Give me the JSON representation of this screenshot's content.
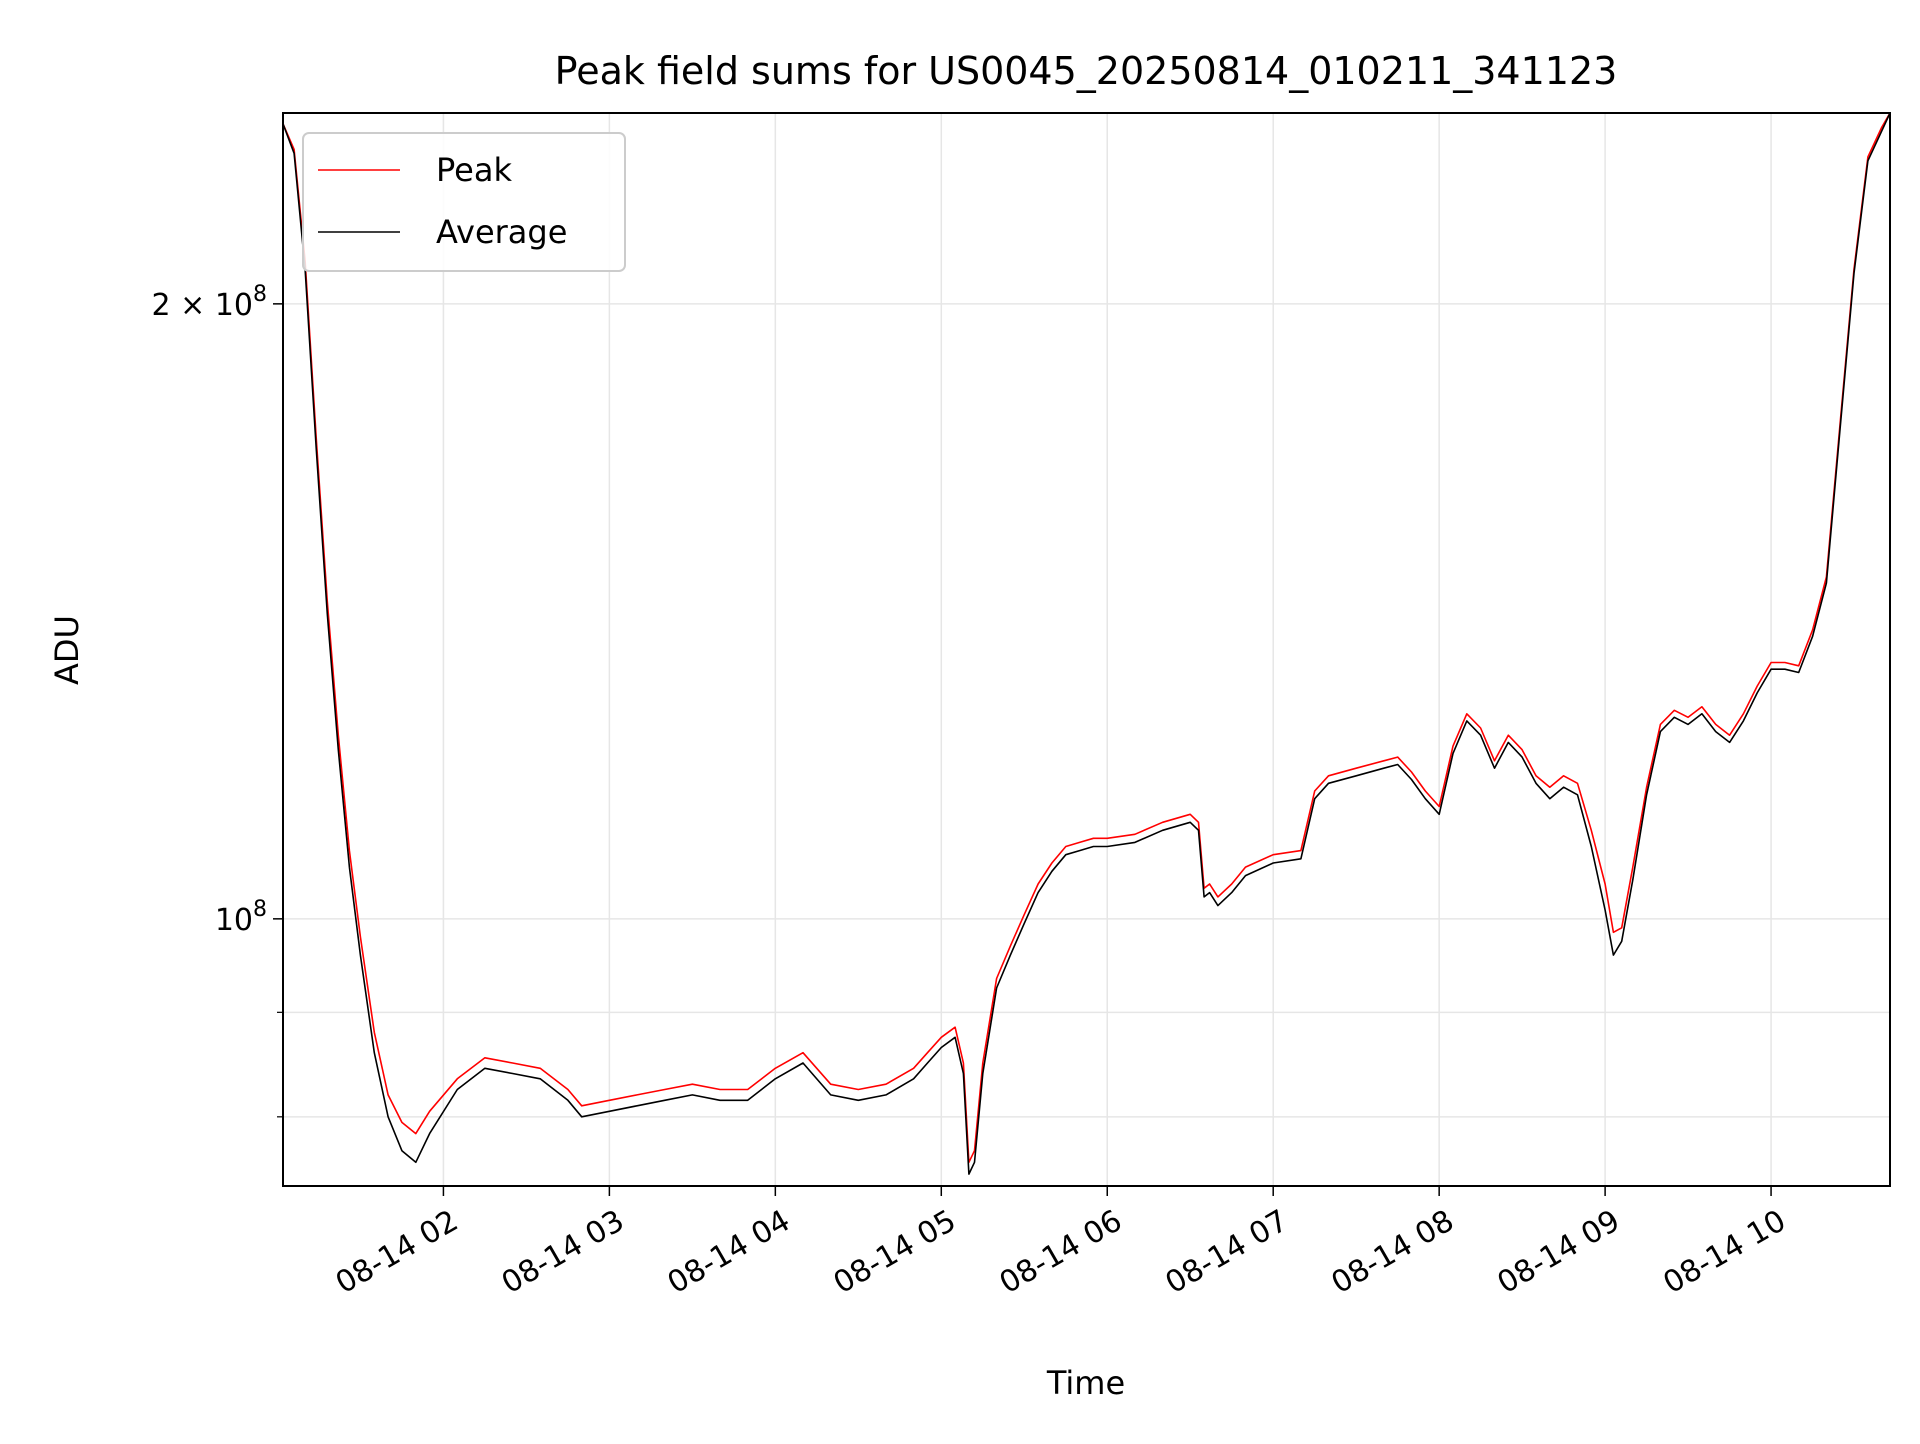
{
  "chart_data": {
    "type": "line",
    "title": "Peak field sums for US0045_20250814_010211_341123",
    "xlabel": "Time",
    "ylabel": "ADU",
    "x_scale": "time",
    "y_scale": "log",
    "xlim": [
      "2025-08-14 01:02",
      "2025-08-14 10:43"
    ],
    "ylim": [
      74000000,
      248000000
    ],
    "x_ticks": [
      {
        "value": "2025-08-14 02:00",
        "label": "08-14 02"
      },
      {
        "value": "2025-08-14 03:00",
        "label": "08-14 03"
      },
      {
        "value": "2025-08-14 04:00",
        "label": "08-14 04"
      },
      {
        "value": "2025-08-14 05:00",
        "label": "08-14 05"
      },
      {
        "value": "2025-08-14 06:00",
        "label": "08-14 06"
      },
      {
        "value": "2025-08-14 07:00",
        "label": "08-14 07"
      },
      {
        "value": "2025-08-14 08:00",
        "label": "08-14 08"
      },
      {
        "value": "2025-08-14 09:00",
        "label": "08-14 09"
      },
      {
        "value": "2025-08-14 10:00",
        "label": "08-14 10"
      }
    ],
    "y_ticks_major": [
      {
        "value": 100000000,
        "base": "10",
        "exp": "8",
        "mantissa": ""
      },
      {
        "value": 200000000,
        "base": "10",
        "exp": "8",
        "mantissa": "2 × "
      }
    ],
    "y_ticks_minor": [
      80000000,
      90000000
    ],
    "grid": true,
    "legend": {
      "placement": "upper-left"
    },
    "series": [
      {
        "name": "Peak",
        "color": "#ff0000",
        "x": [
          "2025-08-14 01:02",
          "2025-08-14 01:06",
          "2025-08-14 01:10",
          "2025-08-14 01:14",
          "2025-08-14 01:18",
          "2025-08-14 01:22",
          "2025-08-14 01:26",
          "2025-08-14 01:30",
          "2025-08-14 01:35",
          "2025-08-14 01:40",
          "2025-08-14 01:45",
          "2025-08-14 01:50",
          "2025-08-14 01:55",
          "2025-08-14 02:05",
          "2025-08-14 02:15",
          "2025-08-14 02:25",
          "2025-08-14 02:35",
          "2025-08-14 02:45",
          "2025-08-14 02:50",
          "2025-08-14 03:00",
          "2025-08-14 03:10",
          "2025-08-14 03:20",
          "2025-08-14 03:30",
          "2025-08-14 03:40",
          "2025-08-14 03:50",
          "2025-08-14 04:00",
          "2025-08-14 04:10",
          "2025-08-14 04:20",
          "2025-08-14 04:30",
          "2025-08-14 04:40",
          "2025-08-14 04:50",
          "2025-08-14 04:55",
          "2025-08-14 05:00",
          "2025-08-14 05:05",
          "2025-08-14 05:08",
          "2025-08-14 05:10",
          "2025-08-14 05:12",
          "2025-08-14 05:15",
          "2025-08-14 05:20",
          "2025-08-14 05:25",
          "2025-08-14 05:30",
          "2025-08-14 05:35",
          "2025-08-14 05:40",
          "2025-08-14 05:45",
          "2025-08-14 05:50",
          "2025-08-14 05:55",
          "2025-08-14 06:00",
          "2025-08-14 06:10",
          "2025-08-14 06:20",
          "2025-08-14 06:30",
          "2025-08-14 06:33",
          "2025-08-14 06:35",
          "2025-08-14 06:37",
          "2025-08-14 06:40",
          "2025-08-14 06:45",
          "2025-08-14 06:50",
          "2025-08-14 07:00",
          "2025-08-14 07:10",
          "2025-08-14 07:15",
          "2025-08-14 07:20",
          "2025-08-14 07:30",
          "2025-08-14 07:40",
          "2025-08-14 07:45",
          "2025-08-14 07:50",
          "2025-08-14 07:55",
          "2025-08-14 08:00",
          "2025-08-14 08:05",
          "2025-08-14 08:10",
          "2025-08-14 08:15",
          "2025-08-14 08:20",
          "2025-08-14 08:25",
          "2025-08-14 08:30",
          "2025-08-14 08:35",
          "2025-08-14 08:40",
          "2025-08-14 08:45",
          "2025-08-14 08:50",
          "2025-08-14 08:55",
          "2025-08-14 09:00",
          "2025-08-14 09:03",
          "2025-08-14 09:06",
          "2025-08-14 09:10",
          "2025-08-14 09:15",
          "2025-08-14 09:20",
          "2025-08-14 09:25",
          "2025-08-14 09:30",
          "2025-08-14 09:35",
          "2025-08-14 09:40",
          "2025-08-14 09:45",
          "2025-08-14 09:50",
          "2025-08-14 09:55",
          "2025-08-14 10:00",
          "2025-08-14 10:05",
          "2025-08-14 10:10",
          "2025-08-14 10:15",
          "2025-08-14 10:20",
          "2025-08-14 10:25",
          "2025-08-14 10:30",
          "2025-08-14 10:35",
          "2025-08-14 10:40",
          "2025-08-14 10:43"
        ],
        "values": [
          245000000,
          238000000,
          210000000,
          172000000,
          143000000,
          123000000,
          108000000,
          98000000,
          88000000,
          82000000,
          79500000,
          78500000,
          80500000,
          83500000,
          85500000,
          85000000,
          84500000,
          82500000,
          81000000,
          81500000,
          82000000,
          82500000,
          83000000,
          82500000,
          82500000,
          84500000,
          86000000,
          83000000,
          82500000,
          83000000,
          84500000,
          86000000,
          87500000,
          88500000,
          85000000,
          76000000,
          77000000,
          85000000,
          93500000,
          97000000,
          100500000,
          104000000,
          106500000,
          108500000,
          109000000,
          109500000,
          109500000,
          110000000,
          111500000,
          112500000,
          111500000,
          103500000,
          104000000,
          102500000,
          104000000,
          106000000,
          107500000,
          108000000,
          115500000,
          117500000,
          118500000,
          119500000,
          120000000,
          118000000,
          115500000,
          113500000,
          121500000,
          126000000,
          124000000,
          119500000,
          123000000,
          121000000,
          117500000,
          116000000,
          117500000,
          116500000,
          110500000,
          104000000,
          98500000,
          99000000,
          106000000,
          116000000,
          124500000,
          126500000,
          125500000,
          127000000,
          124500000,
          123000000,
          126000000,
          130000000,
          133500000,
          133500000,
          133000000,
          138500000,
          147000000,
          175000000,
          208000000,
          236000000,
          244000000,
          248000000
        ]
      },
      {
        "name": "Average",
        "color": "#000000",
        "x": [
          "2025-08-14 01:02",
          "2025-08-14 01:06",
          "2025-08-14 01:10",
          "2025-08-14 01:14",
          "2025-08-14 01:18",
          "2025-08-14 01:22",
          "2025-08-14 01:26",
          "2025-08-14 01:30",
          "2025-08-14 01:35",
          "2025-08-14 01:40",
          "2025-08-14 01:45",
          "2025-08-14 01:50",
          "2025-08-14 01:55",
          "2025-08-14 02:05",
          "2025-08-14 02:15",
          "2025-08-14 02:25",
          "2025-08-14 02:35",
          "2025-08-14 02:45",
          "2025-08-14 02:50",
          "2025-08-14 03:00",
          "2025-08-14 03:10",
          "2025-08-14 03:20",
          "2025-08-14 03:30",
          "2025-08-14 03:40",
          "2025-08-14 03:50",
          "2025-08-14 04:00",
          "2025-08-14 04:10",
          "2025-08-14 04:20",
          "2025-08-14 04:30",
          "2025-08-14 04:40",
          "2025-08-14 04:50",
          "2025-08-14 04:55",
          "2025-08-14 05:00",
          "2025-08-14 05:05",
          "2025-08-14 05:08",
          "2025-08-14 05:10",
          "2025-08-14 05:12",
          "2025-08-14 05:15",
          "2025-08-14 05:20",
          "2025-08-14 05:25",
          "2025-08-14 05:30",
          "2025-08-14 05:35",
          "2025-08-14 05:40",
          "2025-08-14 05:45",
          "2025-08-14 05:50",
          "2025-08-14 05:55",
          "2025-08-14 06:00",
          "2025-08-14 06:10",
          "2025-08-14 06:20",
          "2025-08-14 06:30",
          "2025-08-14 06:33",
          "2025-08-14 06:35",
          "2025-08-14 06:37",
          "2025-08-14 06:40",
          "2025-08-14 06:45",
          "2025-08-14 06:50",
          "2025-08-14 07:00",
          "2025-08-14 07:10",
          "2025-08-14 07:15",
          "2025-08-14 07:20",
          "2025-08-14 07:30",
          "2025-08-14 07:40",
          "2025-08-14 07:45",
          "2025-08-14 07:50",
          "2025-08-14 07:55",
          "2025-08-14 08:00",
          "2025-08-14 08:05",
          "2025-08-14 08:10",
          "2025-08-14 08:15",
          "2025-08-14 08:20",
          "2025-08-14 08:25",
          "2025-08-14 08:30",
          "2025-08-14 08:35",
          "2025-08-14 08:40",
          "2025-08-14 08:45",
          "2025-08-14 08:50",
          "2025-08-14 08:55",
          "2025-08-14 09:00",
          "2025-08-14 09:03",
          "2025-08-14 09:06",
          "2025-08-14 09:10",
          "2025-08-14 09:15",
          "2025-08-14 09:20",
          "2025-08-14 09:25",
          "2025-08-14 09:30",
          "2025-08-14 09:35",
          "2025-08-14 09:40",
          "2025-08-14 09:45",
          "2025-08-14 09:50",
          "2025-08-14 09:55",
          "2025-08-14 10:00",
          "2025-08-14 10:05",
          "2025-08-14 10:10",
          "2025-08-14 10:15",
          "2025-08-14 10:20",
          "2025-08-14 10:25",
          "2025-08-14 10:30",
          "2025-08-14 10:35",
          "2025-08-14 10:40",
          "2025-08-14 10:43"
        ],
        "values": [
          245000000,
          237000000,
          208000000,
          170000000,
          141000000,
          121000000,
          106000000,
          96000000,
          86000000,
          80000000,
          77000000,
          76000000,
          78500000,
          82500000,
          84500000,
          84000000,
          83500000,
          81500000,
          80000000,
          80500000,
          81000000,
          81500000,
          82000000,
          81500000,
          81500000,
          83500000,
          85000000,
          82000000,
          81500000,
          82000000,
          83500000,
          85000000,
          86500000,
          87500000,
          84000000,
          75000000,
          76000000,
          84000000,
          92500000,
          96000000,
          99500000,
          103000000,
          105500000,
          107500000,
          108000000,
          108500000,
          108500000,
          109000000,
          110500000,
          111500000,
          110500000,
          102500000,
          103000000,
          101500000,
          103000000,
          105000000,
          106500000,
          107000000,
          114500000,
          116500000,
          117500000,
          118500000,
          119000000,
          117000000,
          114500000,
          112500000,
          120500000,
          125000000,
          123000000,
          118500000,
          122000000,
          120000000,
          116500000,
          114500000,
          116000000,
          115000000,
          108500000,
          101000000,
          96000000,
          97500000,
          104500000,
          115000000,
          123500000,
          125500000,
          124500000,
          126000000,
          123500000,
          122000000,
          125000000,
          129000000,
          132500000,
          132500000,
          132000000,
          137500000,
          146000000,
          174000000,
          207000000,
          235000000,
          243000000,
          248000000
        ]
      }
    ]
  }
}
